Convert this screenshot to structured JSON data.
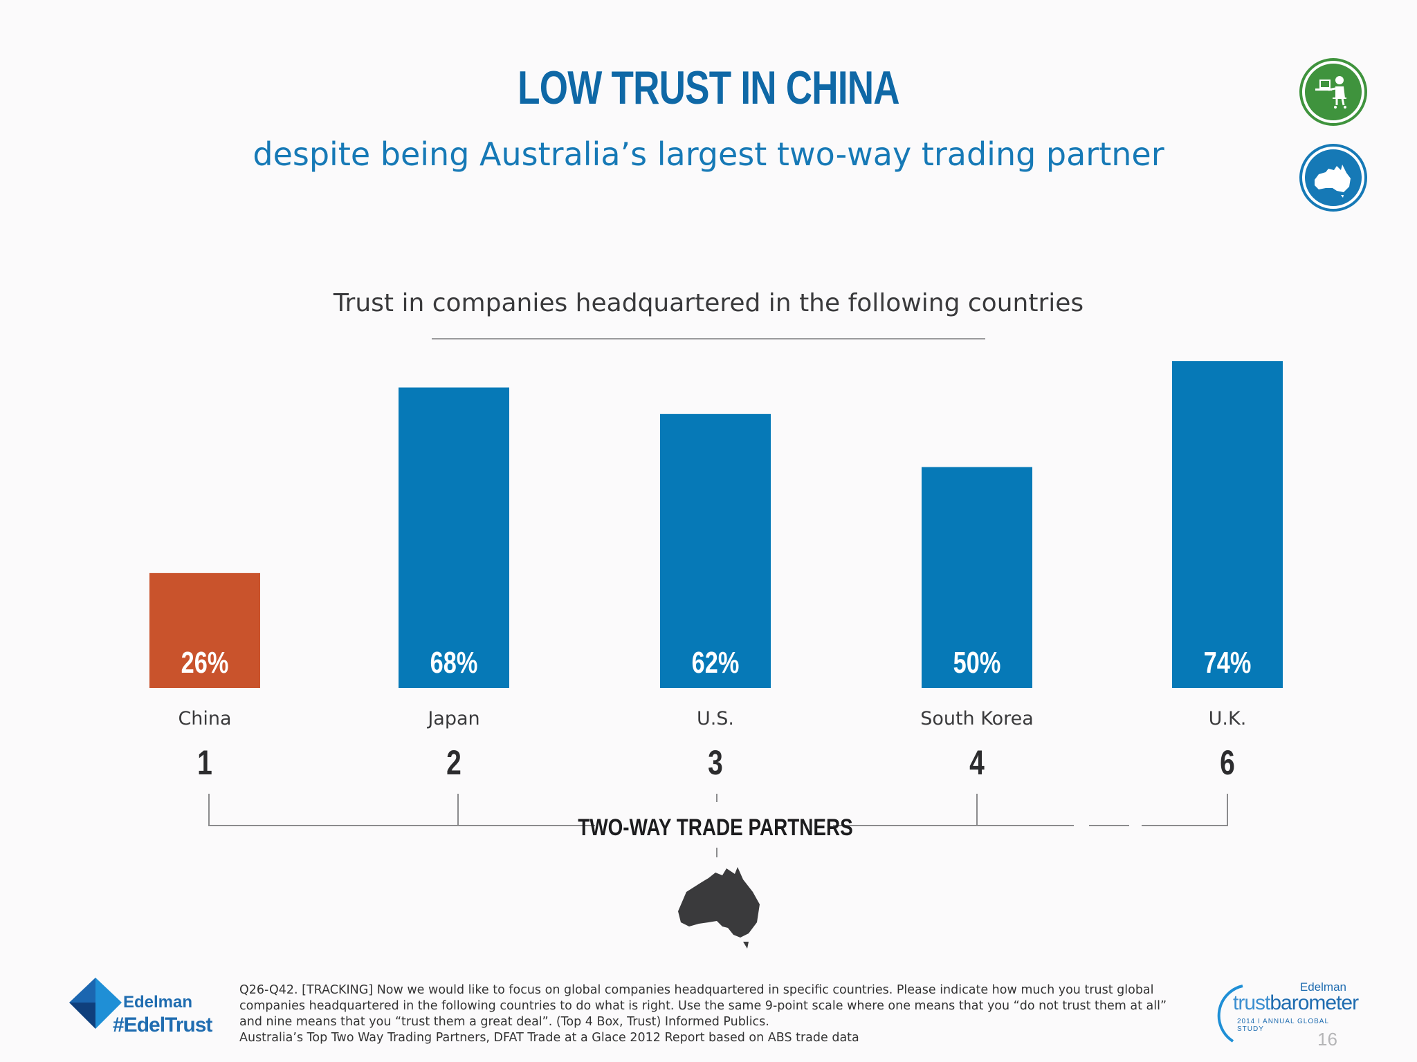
{
  "header": {
    "title": "LOW TRUST IN CHINA",
    "subtitle": "despite being Australia’s largest two-way trading partner"
  },
  "icons": {
    "badge_top": "person-at-laptop-icon",
    "badge_bottom": "australia-map-icon",
    "map": "australia-map-icon"
  },
  "chart_data": {
    "type": "bar",
    "title": "Trust in companies headquartered in the following countries",
    "categories": [
      "China",
      "Japan",
      "U.S.",
      "South Korea",
      "U.K."
    ],
    "values": [
      26,
      68,
      62,
      50,
      74
    ],
    "value_labels": [
      "26%",
      "68%",
      "62%",
      "50%",
      "74%"
    ],
    "trade_partner_rank": [
      "1",
      "2",
      "3",
      "4",
      "6"
    ],
    "bracket_label": "TWO-WAY TRADE PARTNERS",
    "ylim": [
      0,
      100
    ],
    "colors": {
      "highlight": "#c9532c",
      "default": "#0679b7"
    },
    "highlight_category": "China"
  },
  "footnote": {
    "line1": "Q26-Q42. [TRACKING] Now we would like to focus on global companies headquartered in specific countries.  Please indicate how much you trust global companies headquartered in the following countries to do what is right. Use the same 9-point scale where one means that you “do not trust them at all” and nine means that you “trust them a great deal”. (Top 4 Box, Trust) Informed Publics.",
    "line2": "Australia’s Top Two Way Trading Partners, DFAT Trade at a Glace 2012 Report based on ABS trade data"
  },
  "branding": {
    "company": "Edelman",
    "hashtag": "#EdelTrust",
    "tb_brand": "Edelman",
    "tb_word_a": "trust",
    "tb_word_b": "barometer",
    "tb_sub": "2014  I  ANNUAL GLOBAL STUDY"
  },
  "page_number": "16"
}
